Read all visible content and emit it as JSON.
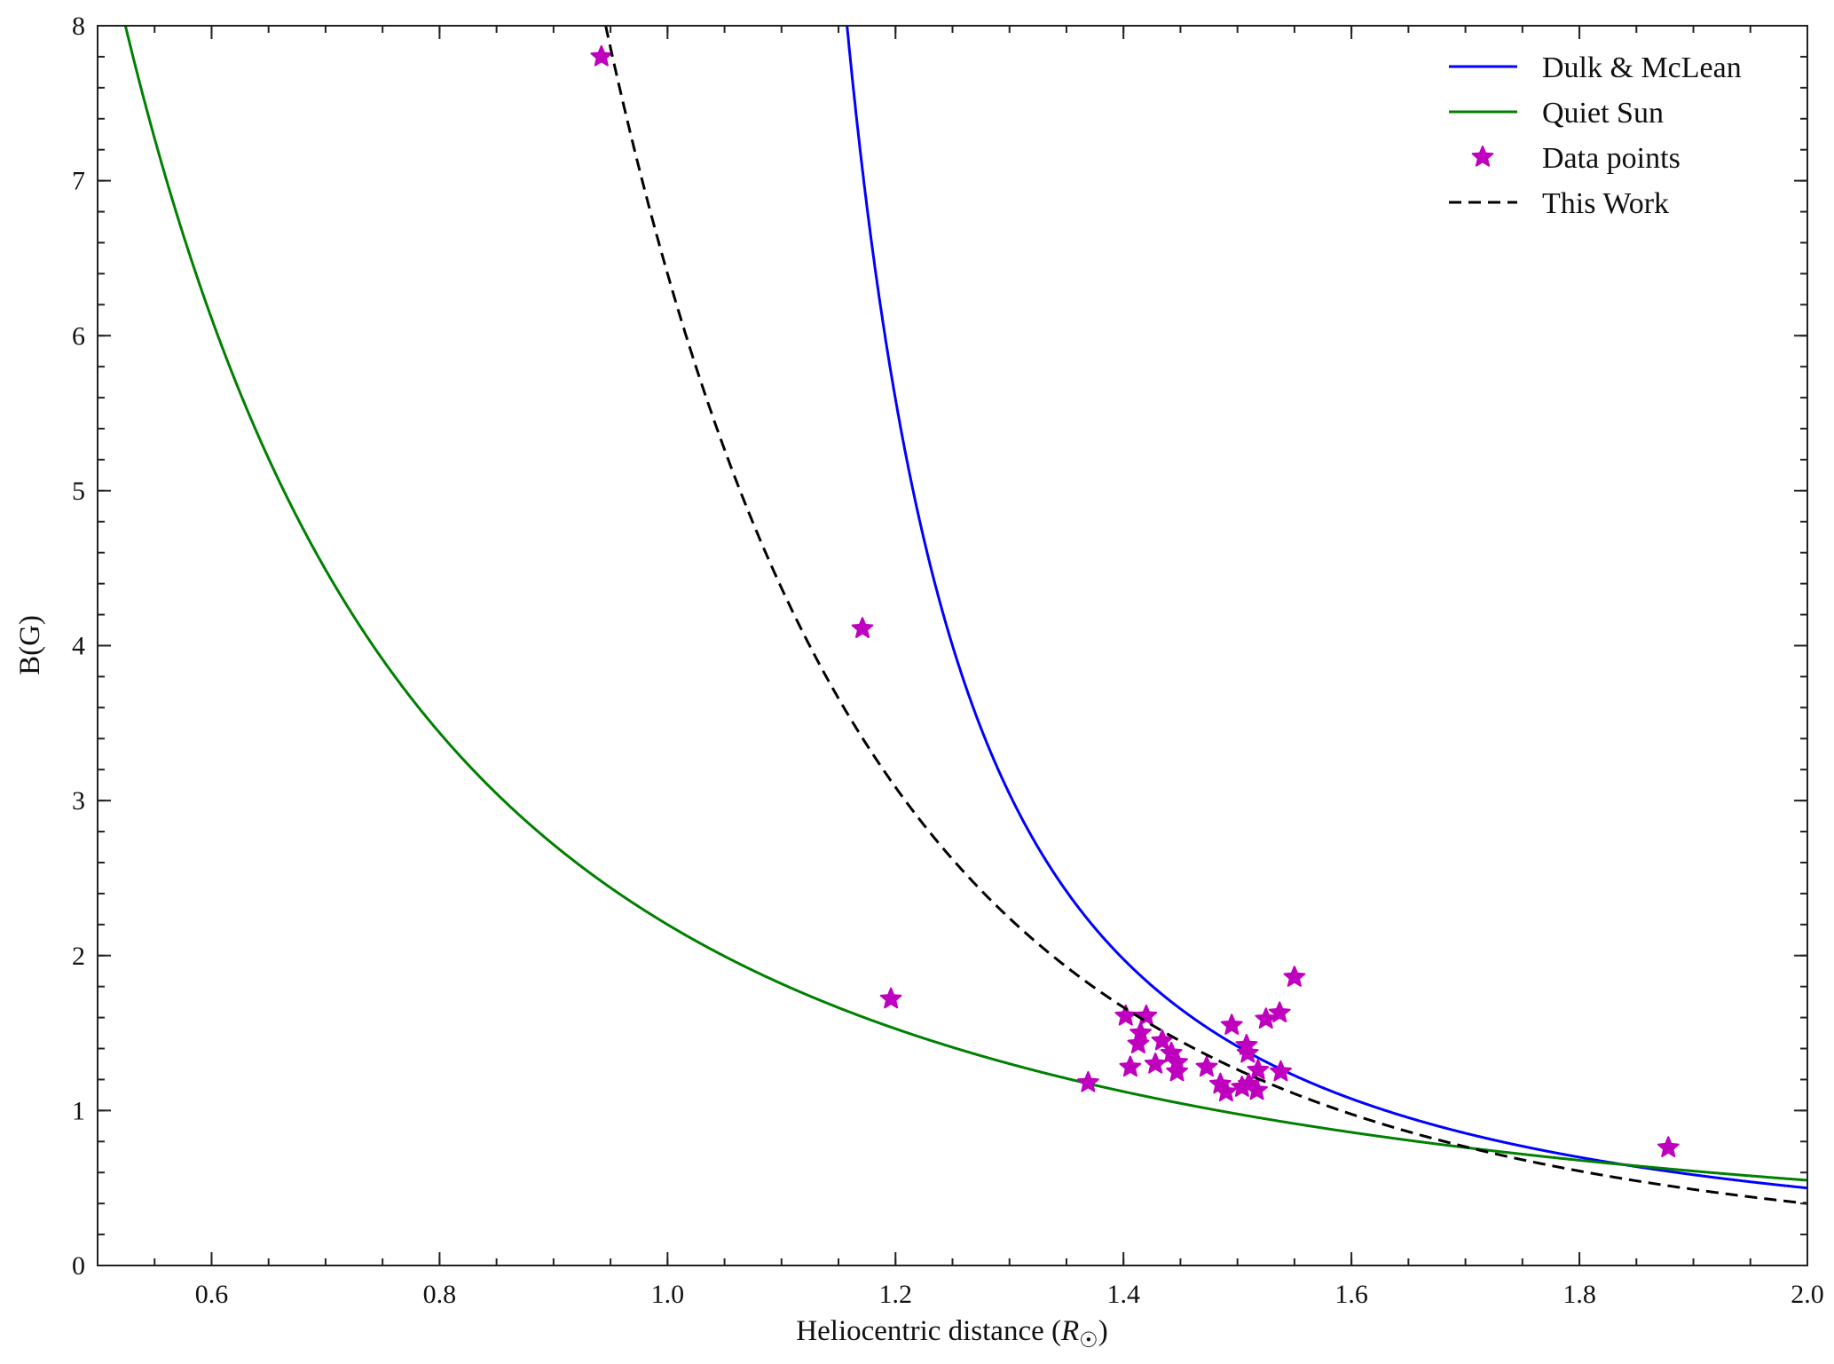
{
  "chart_data": {
    "type": "line",
    "title": "",
    "xlabel": "Heliocentric distance",
    "xlabel_symbol": "R",
    "xlabel_subscript": "☉",
    "ylabel": "B(G)",
    "xlim": [
      0.5,
      2.0
    ],
    "ylim": [
      0,
      8
    ],
    "xticks": [
      "0.6",
      "0.8",
      "1.0",
      "1.2",
      "1.4",
      "1.6",
      "1.8",
      "2.0"
    ],
    "yticks": [
      "0",
      "1",
      "2",
      "3",
      "4",
      "5",
      "6",
      "7",
      "8"
    ],
    "x_minor_step": 0.05,
    "y_minor_step": 0.2,
    "grid": false,
    "legend_position": "top-right",
    "series": [
      {
        "name": "Dulk & McLean",
        "kind": "line",
        "color": "#0000ff",
        "formula": "B = 0.5 (R-1)^-1.5",
        "a": 0.5,
        "c": 1.0,
        "b": 1.5
      },
      {
        "name": "Quiet Sun",
        "kind": "line",
        "color": "#008000",
        "formula": "B = 2.2 R^-2",
        "a": 2.2,
        "c": 0,
        "b": 2
      },
      {
        "name": "Data points",
        "kind": "scatter",
        "color": "#bf00bf",
        "points": [
          [
            0.942,
            7.8
          ],
          [
            1.171,
            4.11
          ],
          [
            1.196,
            1.72
          ],
          [
            1.369,
            1.18
          ],
          [
            1.402,
            1.61
          ],
          [
            1.42,
            1.61
          ],
          [
            1.406,
            1.28
          ],
          [
            1.413,
            1.43
          ],
          [
            1.415,
            1.5
          ],
          [
            1.428,
            1.3
          ],
          [
            1.434,
            1.45
          ],
          [
            1.442,
            1.37
          ],
          [
            1.447,
            1.25
          ],
          [
            1.447,
            1.31
          ],
          [
            1.473,
            1.28
          ],
          [
            1.485,
            1.17
          ],
          [
            1.49,
            1.12
          ],
          [
            1.495,
            1.55
          ],
          [
            1.504,
            1.15
          ],
          [
            1.508,
            1.42
          ],
          [
            1.509,
            1.37
          ],
          [
            1.51,
            1.17
          ],
          [
            1.517,
            1.13
          ],
          [
            1.518,
            1.26
          ],
          [
            1.525,
            1.59
          ],
          [
            1.537,
            1.63
          ],
          [
            1.538,
            1.25
          ],
          [
            1.55,
            1.86
          ],
          [
            1.878,
            0.76
          ]
        ]
      },
      {
        "name": "This Work",
        "kind": "dashed",
        "color": "#000000",
        "formula": "B ≈ 6.4 R^-4",
        "a": 6.4,
        "c": 0,
        "b": 4
      }
    ]
  }
}
